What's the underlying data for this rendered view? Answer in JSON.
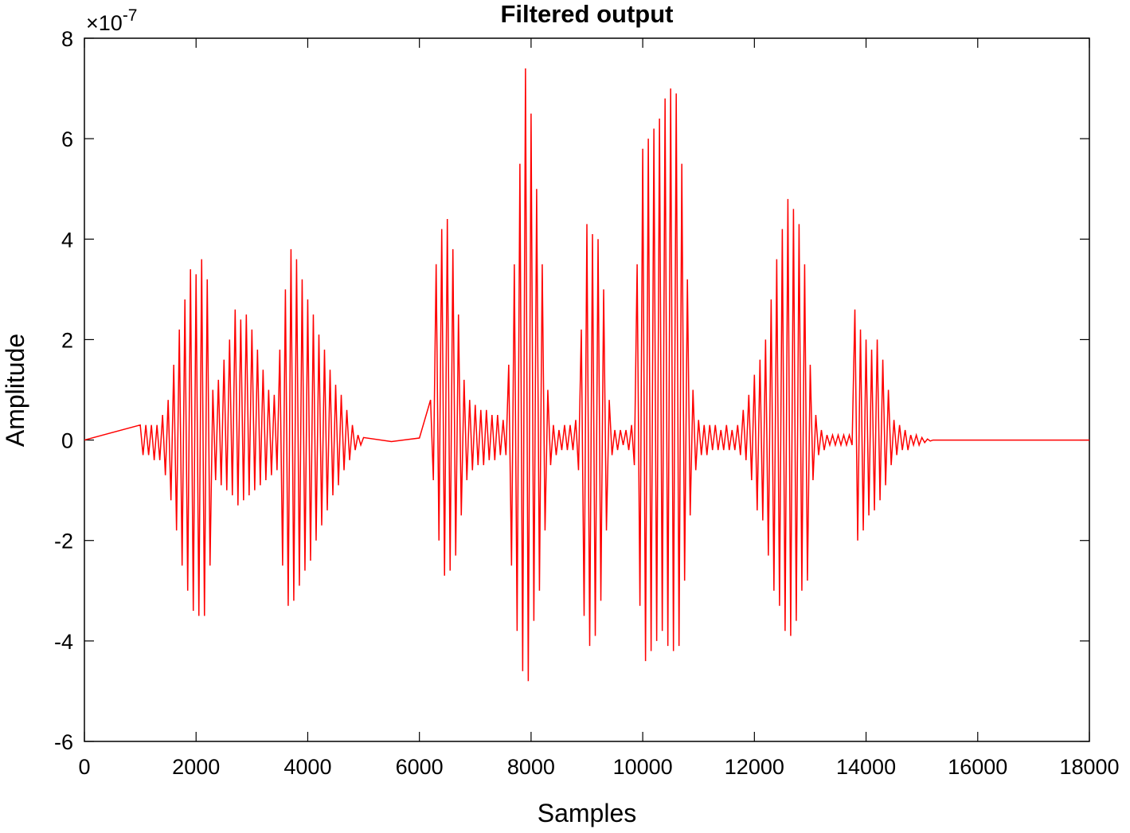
{
  "chart_data": {
    "type": "line",
    "title": "Filtered output",
    "x_label": "Samples",
    "y_label": "Amplitude",
    "y_multiplier": {
      "base": "×10",
      "exponent": "-7"
    },
    "xlim": [
      0,
      18000
    ],
    "xticks": [
      0,
      2000,
      4000,
      6000,
      8000,
      10000,
      12000,
      14000,
      16000,
      18000
    ],
    "ylim": [
      -6,
      8
    ],
    "yticks": [
      -6,
      -4,
      -2,
      0,
      2,
      4,
      6,
      8
    ],
    "grid": false,
    "series": [
      {
        "name": "Filtered output",
        "color": "#ff0000",
        "x": [
          0,
          1000,
          1050,
          1100,
          1150,
          1200,
          1250,
          1300,
          1350,
          1400,
          1450,
          1500,
          1550,
          1600,
          1650,
          1700,
          1750,
          1800,
          1850,
          1900,
          1950,
          2000,
          2050,
          2100,
          2150,
          2200,
          2250,
          2300,
          2350,
          2400,
          2450,
          2500,
          2550,
          2600,
          2650,
          2700,
          2750,
          2800,
          2850,
          2900,
          2950,
          3000,
          3050,
          3100,
          3150,
          3200,
          3250,
          3300,
          3350,
          3400,
          3450,
          3500,
          3550,
          3600,
          3650,
          3700,
          3750,
          3800,
          3850,
          3900,
          3950,
          4000,
          4050,
          4100,
          4150,
          4200,
          4250,
          4300,
          4350,
          4400,
          4450,
          4500,
          4550,
          4600,
          4650,
          4700,
          4750,
          4800,
          4850,
          4900,
          4950,
          5000,
          5500,
          6000,
          6200,
          6250,
          6300,
          6350,
          6400,
          6450,
          6500,
          6550,
          6600,
          6650,
          6700,
          6750,
          6800,
          6850,
          6900,
          6950,
          7000,
          7050,
          7100,
          7150,
          7200,
          7250,
          7300,
          7350,
          7400,
          7450,
          7500,
          7550,
          7600,
          7650,
          7700,
          7750,
          7800,
          7850,
          7900,
          7950,
          8000,
          8050,
          8100,
          8150,
          8200,
          8250,
          8300,
          8350,
          8400,
          8450,
          8500,
          8550,
          8600,
          8650,
          8700,
          8750,
          8800,
          8850,
          8900,
          8950,
          9000,
          9050,
          9100,
          9150,
          9200,
          9250,
          9300,
          9350,
          9400,
          9450,
          9500,
          9550,
          9600,
          9650,
          9700,
          9750,
          9800,
          9850,
          9900,
          9950,
          10000,
          10050,
          10100,
          10150,
          10200,
          10250,
          10300,
          10350,
          10400,
          10450,
          10500,
          10550,
          10600,
          10650,
          10700,
          10750,
          10800,
          10850,
          10900,
          10950,
          11000,
          11050,
          11100,
          11150,
          11200,
          11250,
          11300,
          11350,
          11400,
          11450,
          11500,
          11550,
          11600,
          11650,
          11700,
          11750,
          11800,
          11850,
          11900,
          11950,
          12000,
          12050,
          12100,
          12150,
          12200,
          12250,
          12300,
          12350,
          12400,
          12450,
          12500,
          12550,
          12600,
          12650,
          12700,
          12750,
          12800,
          12850,
          12900,
          12950,
          13000,
          13050,
          13100,
          13150,
          13200,
          13250,
          13300,
          13350,
          13400,
          13450,
          13500,
          13550,
          13600,
          13650,
          13700,
          13750,
          13800,
          13850,
          13900,
          13950,
          14000,
          14050,
          14100,
          14150,
          14200,
          14250,
          14300,
          14350,
          14400,
          14450,
          14500,
          14550,
          14600,
          14650,
          14700,
          14750,
          14800,
          14850,
          14900,
          14950,
          15000,
          15050,
          15100,
          15150,
          15200,
          18000
        ],
        "values": [
          0,
          0.3,
          -0.3,
          0.3,
          -0.3,
          0.3,
          -0.4,
          0.3,
          -0.4,
          0.5,
          -0.7,
          0.8,
          -1.2,
          1.5,
          -1.8,
          2.2,
          -2.5,
          2.8,
          -3.0,
          3.4,
          -3.4,
          3.3,
          -3.5,
          3.6,
          -3.5,
          3.2,
          -2.5,
          1.0,
          -0.8,
          1.2,
          -0.9,
          1.6,
          -1.0,
          2.0,
          -1.1,
          2.6,
          -1.3,
          2.4,
          -1.2,
          2.5,
          -1.1,
          2.2,
          -1.0,
          1.8,
          -0.9,
          1.4,
          -0.8,
          1.0,
          -0.7,
          0.9,
          -0.6,
          1.8,
          -2.5,
          3.0,
          -3.3,
          3.8,
          -3.2,
          3.6,
          -2.9,
          3.2,
          -2.6,
          2.8,
          -2.4,
          2.5,
          -2.0,
          2.1,
          -1.7,
          1.8,
          -1.4,
          1.4,
          -1.1,
          1.1,
          -0.9,
          0.9,
          -0.6,
          0.6,
          -0.4,
          0.3,
          -0.2,
          0.1,
          -0.1,
          0.05,
          -0.03,
          0.04,
          0.8,
          -0.8,
          3.5,
          -2.0,
          4.2,
          -2.7,
          4.4,
          -2.6,
          3.8,
          -2.3,
          2.5,
          -1.5,
          1.2,
          -0.8,
          0.8,
          -0.6,
          0.7,
          -0.5,
          0.6,
          -0.5,
          0.6,
          -0.4,
          0.5,
          -0.4,
          0.5,
          -0.3,
          0.4,
          -0.3,
          1.5,
          -2.5,
          3.5,
          -3.8,
          5.5,
          -4.6,
          7.4,
          -4.8,
          6.5,
          -3.6,
          5.0,
          -3.0,
          3.5,
          -1.8,
          1.0,
          -0.5,
          0.3,
          -0.3,
          0.2,
          -0.2,
          0.3,
          -0.2,
          0.3,
          -0.2,
          0.4,
          -0.6,
          2.2,
          -3.5,
          4.3,
          -4.1,
          4.1,
          -3.9,
          4.0,
          -3.2,
          3.0,
          -1.8,
          0.8,
          -0.3,
          0.2,
          -0.2,
          0.2,
          -0.1,
          0.2,
          -0.2,
          0.3,
          -0.5,
          3.5,
          -3.3,
          5.8,
          -4.4,
          6.0,
          -4.2,
          6.2,
          -4.0,
          6.4,
          -3.8,
          6.8,
          -4.1,
          7.0,
          -4.2,
          6.9,
          -4.1,
          5.5,
          -2.8,
          3.2,
          -1.5,
          1.0,
          -0.6,
          0.4,
          -0.3,
          0.3,
          -0.3,
          0.3,
          -0.2,
          0.3,
          -0.2,
          0.2,
          -0.2,
          0.3,
          -0.2,
          0.2,
          -0.2,
          0.3,
          -0.3,
          0.6,
          -0.4,
          0.9,
          -0.8,
          1.3,
          -1.4,
          1.6,
          -1.6,
          2.0,
          -2.3,
          2.8,
          -3.0,
          3.6,
          -3.3,
          4.2,
          -3.8,
          4.8,
          -3.9,
          4.6,
          -3.6,
          4.3,
          -3.0,
          3.5,
          -2.8,
          1.5,
          -0.8,
          0.5,
          -0.3,
          0.2,
          -0.2,
          0.1,
          -0.1,
          0.1,
          -0.1,
          0.1,
          -0.1,
          0.1,
          -0.1,
          0.1,
          -0.1,
          2.6,
          -2.0,
          2.2,
          -1.8,
          2.0,
          -1.5,
          1.8,
          -1.4,
          2.0,
          -1.2,
          1.6,
          -0.9,
          1.0,
          -0.5,
          0.4,
          -0.3,
          0.3,
          -0.2,
          0.2,
          -0.2,
          0.1,
          -0.1,
          0.1,
          -0.1,
          0.05,
          -0.05,
          0.02,
          -0.02,
          0,
          0
        ]
      }
    ]
  }
}
